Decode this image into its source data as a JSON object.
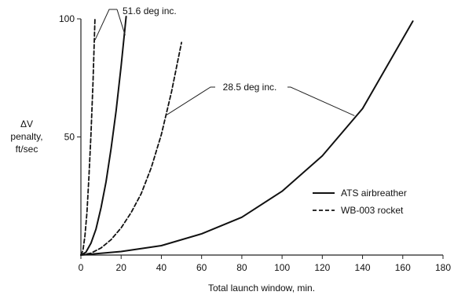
{
  "chart_data": {
    "type": "line",
    "title": "",
    "xlabel": "Total launch window, min.",
    "ylabel_lines": [
      "ΔV",
      "penalty,",
      "ft/sec"
    ],
    "xlim": [
      0,
      180
    ],
    "ylim": [
      0,
      100
    ],
    "x_ticks": [
      0,
      20,
      40,
      60,
      80,
      100,
      120,
      140,
      160,
      180
    ],
    "y_ticks": [
      50,
      100
    ],
    "grid": false,
    "legend_position": "lower-right",
    "series": [
      {
        "name": "ATS airbreather",
        "style": "solid",
        "group": "51.6 deg inc.",
        "x": [
          0,
          2.5,
          5,
          7.5,
          10,
          12.5,
          15,
          17.5,
          20,
          22.5
        ],
        "y": [
          0,
          1.2,
          5,
          11,
          20,
          31,
          45,
          61,
          80,
          101
        ]
      },
      {
        "name": "WB-003 rocket",
        "style": "dashed",
        "group": "51.6 deg inc.",
        "x": [
          0,
          1,
          2,
          3,
          4,
          5,
          6,
          7
        ],
        "y": [
          0,
          2,
          8,
          18,
          33,
          51,
          73,
          100
        ]
      },
      {
        "name": "ATS airbreather",
        "style": "solid",
        "group": "28.5 deg inc.",
        "x": [
          0,
          20,
          40,
          60,
          80,
          100,
          120,
          140,
          165
        ],
        "y": [
          0,
          1.5,
          4,
          9,
          16,
          27,
          42,
          62,
          99
        ]
      },
      {
        "name": "WB-003 rocket",
        "style": "dashed",
        "group": "28.5 deg inc.",
        "x": [
          0,
          5,
          10,
          15,
          20,
          25,
          30,
          35,
          40,
          45,
          50
        ],
        "y": [
          0,
          0.8,
          3,
          6.5,
          11.5,
          18,
          26,
          37,
          51,
          69,
          90
        ]
      }
    ],
    "legend": [
      {
        "label": "ATS airbreather",
        "style": "solid"
      },
      {
        "label": "WB-003 rocket",
        "style": "dashed"
      }
    ],
    "annotations": [
      {
        "text": "51.6 deg inc.",
        "points_to": [
          [
            7,
            91
          ],
          [
            22,
            93
          ]
        ]
      },
      {
        "text": "28.5 deg inc.",
        "points_to": [
          [
            42,
            59
          ],
          [
            136,
            59
          ]
        ]
      }
    ]
  }
}
